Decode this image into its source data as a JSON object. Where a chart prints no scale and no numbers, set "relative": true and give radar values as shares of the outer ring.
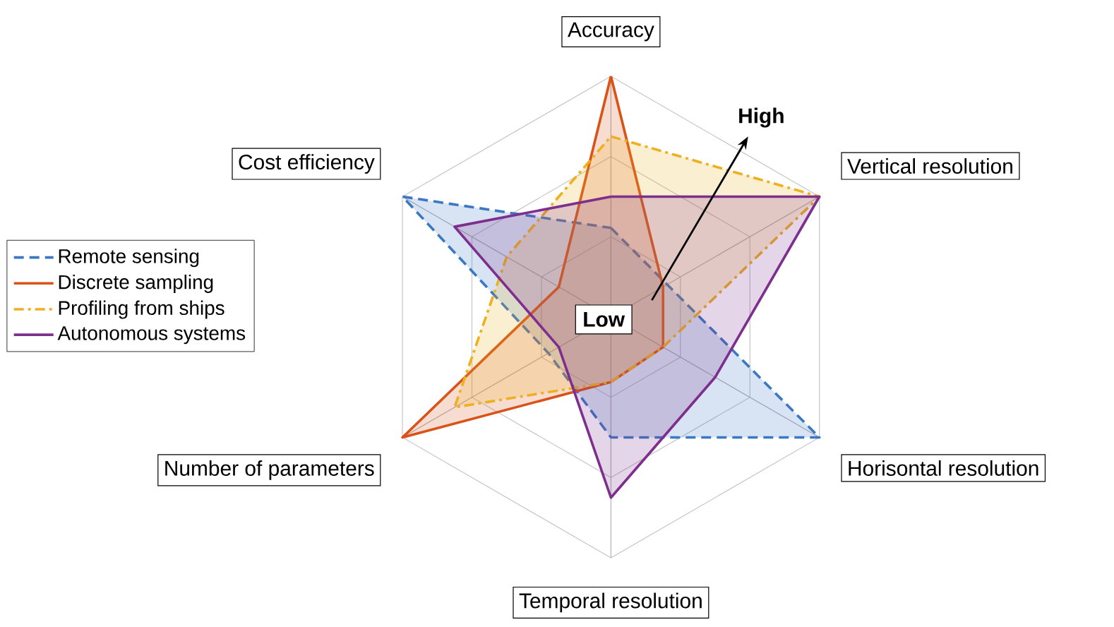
{
  "chart_data": {
    "type": "radar",
    "relative": true,
    "grid": true,
    "legend": "left",
    "categories": [
      "Accuracy",
      "Vertical resolution",
      "Horisontal resolution",
      "Temporal resolution",
      "Number of parameters",
      "Cost efficiency"
    ],
    "annotations": [
      "High",
      "Low"
    ],
    "series": [
      {
        "name": "Remote sensing",
        "color": "#3a78c4",
        "line_style": "dashed",
        "values": [
          0.37,
          0.27,
          1.0,
          0.5,
          0.3,
          1.0
        ]
      },
      {
        "name": "Discrete sampling",
        "color": "#d95319",
        "line_style": "solid",
        "values": [
          1.0,
          0.25,
          0.25,
          0.27,
          1.0,
          0.25
        ]
      },
      {
        "name": "Profiling from ships",
        "color": "#edb120",
        "line_style": "dashdot",
        "values": [
          0.75,
          1.0,
          0.25,
          0.27,
          0.75,
          0.5
        ]
      },
      {
        "name": "Autonomous systems",
        "color": "#7e2f8e",
        "line_style": "solid",
        "values": [
          0.5,
          1.0,
          0.5,
          0.75,
          0.25,
          0.75
        ]
      }
    ]
  }
}
